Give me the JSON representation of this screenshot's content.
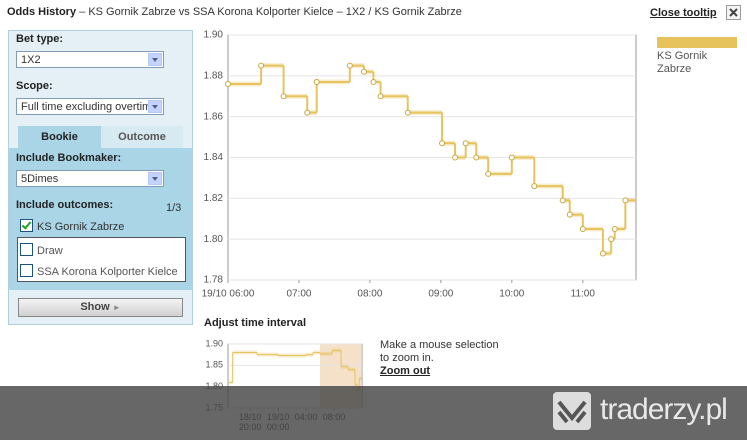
{
  "header": {
    "title": "Odds History",
    "subtitle": "– KS Gornik Zabrze vs SSA Korona Kolporter Kielce – 1X2 / KS Gornik Zabrze"
  },
  "close_link": "Close tooltip",
  "form": {
    "bet_type_label": "Bet type:",
    "bet_type": "1X2",
    "scope_label": "Scope:",
    "scope": "Full time excluding overtim",
    "tabs": [
      "Bookie",
      "Outcome"
    ],
    "bookmaker_label": "Include Bookmaker:",
    "bookmaker": "5Dimes",
    "outcomes_label": "Include outcomes:",
    "outcomes_count": "1/3",
    "outcomes": [
      {
        "label": "KS Gornik Zabrze",
        "checked": true
      },
      {
        "label": "Draw",
        "checked": false
      },
      {
        "label": "SSA Korona Kolporter Kielce",
        "checked": false
      }
    ],
    "button": "Show"
  },
  "chart_data": [
    {
      "type": "line",
      "step": true,
      "markers": true,
      "grid": true,
      "legend": "right",
      "x": [
        "19/10 06:00",
        "19/10 06:28",
        "19/10 06:47",
        "19/10 07:07",
        "19/10 07:15",
        "19/10 07:43",
        "19/10 07:55",
        "19/10 08:03",
        "19/10 08:09",
        "19/10 08:32",
        "19/10 09:01",
        "19/10 09:12",
        "19/10 09:21",
        "19/10 09:30",
        "19/10 09:40",
        "19/10 10:00",
        "19/10 10:19",
        "19/10 10:43",
        "19/10 10:49",
        "19/10 11:00",
        "19/10 11:17",
        "19/10 11:24",
        "19/10 11:27",
        "19/10 11:36"
      ],
      "series": [
        {
          "name": "KS Gornik Zabrze",
          "color": "#e6c35c",
          "values": [
            1.876,
            1.885,
            1.87,
            1.862,
            1.877,
            1.885,
            1.882,
            1.877,
            1.87,
            1.862,
            1.847,
            1.84,
            1.847,
            1.84,
            1.832,
            1.84,
            1.826,
            1.819,
            1.812,
            1.805,
            1.793,
            1.8,
            1.805,
            1.819
          ]
        }
      ],
      "xlim": [
        "19/10 06:00",
        "19/10 11:45"
      ],
      "xticks": [
        "19/10 06:00",
        {
          "value": "19/10 07:00",
          "label": "07:00"
        },
        {
          "value": "19/10 08:00",
          "label": "08:00"
        },
        {
          "value": "19/10 09:00",
          "label": "09:00"
        },
        {
          "value": "19/10 10:00",
          "label": "10:00"
        },
        {
          "value": "19/10 11:00",
          "label": "11:00"
        }
      ],
      "ylim": [
        1.78,
        1.9
      ],
      "yticks": [
        1.78,
        {
          "value": 1.8,
          "label": "1.80"
        },
        1.82,
        1.84,
        1.86,
        1.88,
        {
          "value": 1.9,
          "label": "1.90"
        }
      ]
    },
    {
      "type": "line",
      "title": "Adjust time interval",
      "step": true,
      "grid": true,
      "x": [
        "18/10 17:00",
        "18/10 17:30",
        "18/10 21:00",
        "19/10 00:00",
        "19/10 04:00",
        "19/10 05:00",
        "19/10 06:00",
        "19/10 07:43",
        "19/10 09:00",
        "19/10 10:00",
        "19/10 11:00",
        "19/10 11:17",
        "19/10 11:36"
      ],
      "series": [
        {
          "name": "KS Gornik Zabrze",
          "color": "#e6c35c",
          "values": [
            1.81,
            1.88,
            1.875,
            1.873,
            1.875,
            1.88,
            1.877,
            1.885,
            1.847,
            1.84,
            1.805,
            1.793,
            1.819
          ]
        }
      ],
      "selection": [
        "19/10 06:00",
        "19/10 12:00"
      ],
      "xlim": [
        "18/10 16:50",
        "19/10 12:00"
      ],
      "xticks": [
        "18/10 20:00",
        "19/10 00:00",
        {
          "value": "19/10 04:00",
          "label": "04:00"
        },
        {
          "value": "19/10 08:00",
          "label": "08:00"
        }
      ],
      "ylim": [
        1.75,
        1.9
      ],
      "yticks": [
        1.75,
        {
          "value": 1.8,
          "label": "1.80"
        },
        1.85,
        {
          "value": 1.9,
          "label": "1.90"
        }
      ]
    }
  ],
  "zoom_hint": "Make a mouse selection to zoom in.",
  "zoom_out": "Zoom out",
  "watermark": "traderzy.pl"
}
